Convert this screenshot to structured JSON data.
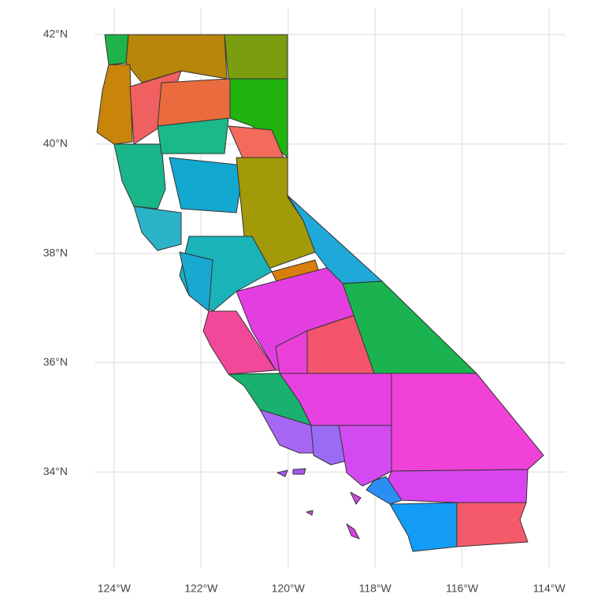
{
  "chart_data": {
    "type": "map",
    "xlim": [
      -124.45,
      -113.62
    ],
    "ylim": [
      32.26,
      42.49
    ],
    "xticks": [
      {
        "value": -124,
        "label": "124°W"
      },
      {
        "value": -122,
        "label": "122°W"
      },
      {
        "value": -120,
        "label": "120°W"
      },
      {
        "value": -118,
        "label": "118°W"
      },
      {
        "value": -116,
        "label": "116°W"
      },
      {
        "value": -114,
        "label": "114°W"
      }
    ],
    "yticks": [
      {
        "value": 34,
        "label": "34°N"
      },
      {
        "value": 36,
        "label": "36°N"
      },
      {
        "value": 38,
        "label": "38°N"
      },
      {
        "value": 40,
        "label": "40°N"
      },
      {
        "value": 42,
        "label": "42°N"
      }
    ],
    "grid": true
  }
}
